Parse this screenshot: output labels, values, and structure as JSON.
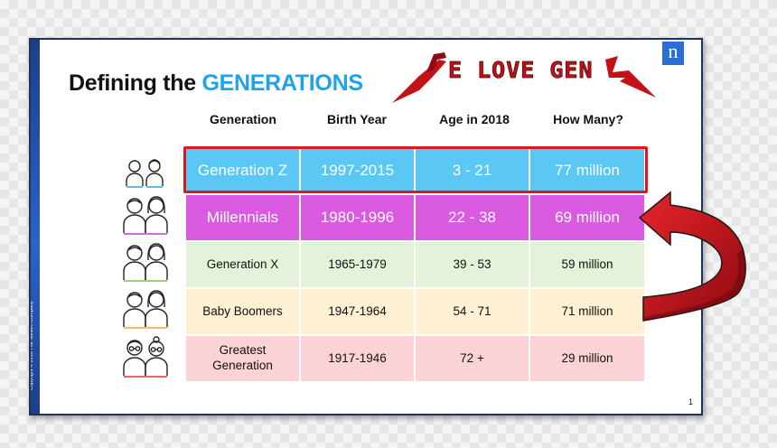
{
  "slide": {
    "title_prefix": "Defining the",
    "title_accent": "GENERATIONS",
    "banner_text": "E LOVE GEN",
    "logo": "n",
    "copyright": "Copyright © 2018 The Nielsen Company",
    "page_number": "1"
  },
  "table": {
    "headers": [
      "Generation",
      "Birth Year",
      "Age in 2018",
      "How Many?"
    ],
    "rows": [
      {
        "generation": "Generation Z",
        "birth_year": "1997-2015",
        "age": "3 - 21",
        "how_many": "77 million",
        "color": "#5bc7f5",
        "text_color": "#ffffff"
      },
      {
        "generation": "Millennials",
        "birth_year": "1980-1996",
        "age": "22 - 38",
        "how_many": "69 million",
        "color": "#db5ae2",
        "text_color": "#ffffff"
      },
      {
        "generation": "Generation X",
        "birth_year": "1965-1979",
        "age": "39 - 53",
        "how_many": "59 million",
        "color": "#e5f2da",
        "text_color": "#111111"
      },
      {
        "generation": "Baby Boomers",
        "birth_year": "1947-1964",
        "age": "54 - 71",
        "how_many": "71 million",
        "color": "#fdf0d3",
        "text_color": "#111111"
      },
      {
        "generation": "Greatest Generation",
        "birth_year": "1917-1946",
        "age": "72 +",
        "how_many": "29 million",
        "color": "#fbd2d6",
        "text_color": "#111111"
      }
    ]
  },
  "icons": [
    {
      "name": "gen-z-kids-icon",
      "accent": "#29a8e0"
    },
    {
      "name": "millennials-people-icon",
      "accent": "#c33fd0"
    },
    {
      "name": "gen-x-people-icon",
      "accent": "#7bc043"
    },
    {
      "name": "baby-boomers-people-icon",
      "accent": "#f0a830"
    },
    {
      "name": "greatest-generation-elderly-icon",
      "accent": "#e8303a"
    }
  ],
  "colors": {
    "accent_blue": "#1fa3e8",
    "highlight_red": "#e3141b",
    "arrow_red": "#c41019",
    "frame_navy": "#1f3358"
  }
}
